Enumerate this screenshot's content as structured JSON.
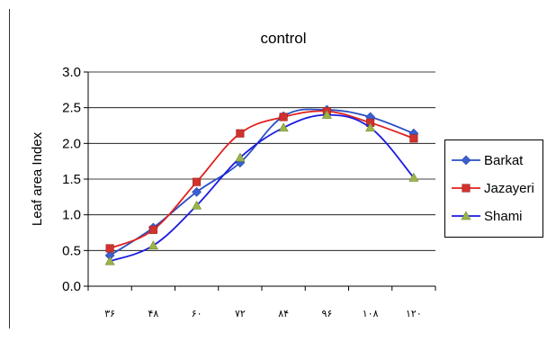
{
  "chart_data": {
    "type": "line",
    "title": "control",
    "xlabel": "",
    "ylabel": "Leaf area Index",
    "categories": [
      "۳۶",
      "۴۸",
      "۶۰",
      "۷۲",
      "۸۴",
      "۹۶",
      "۱۰۸",
      "۱۲۰"
    ],
    "ylim": [
      0,
      3.0
    ],
    "yticks": [
      "0.0",
      "0.5",
      "1.0",
      "1.5",
      "2.0",
      "2.5",
      "3.0"
    ],
    "grid": true,
    "legend_position": "right",
    "series": [
      {
        "name": "Barkat",
        "color": "#2a4fc4",
        "marker": "diamond",
        "values": [
          0.43,
          0.82,
          1.32,
          1.73,
          2.38,
          2.47,
          2.37,
          2.14
        ]
      },
      {
        "name": "Jazayeri",
        "color": "#e0201d",
        "marker": "square",
        "values": [
          0.53,
          0.79,
          1.46,
          2.14,
          2.37,
          2.45,
          2.29,
          2.07
        ]
      },
      {
        "name": "Shami",
        "color": "#1a1ae0",
        "marker": "triangle",
        "values": [
          0.35,
          0.57,
          1.13,
          1.8,
          2.22,
          2.4,
          2.22,
          1.52
        ]
      }
    ]
  }
}
